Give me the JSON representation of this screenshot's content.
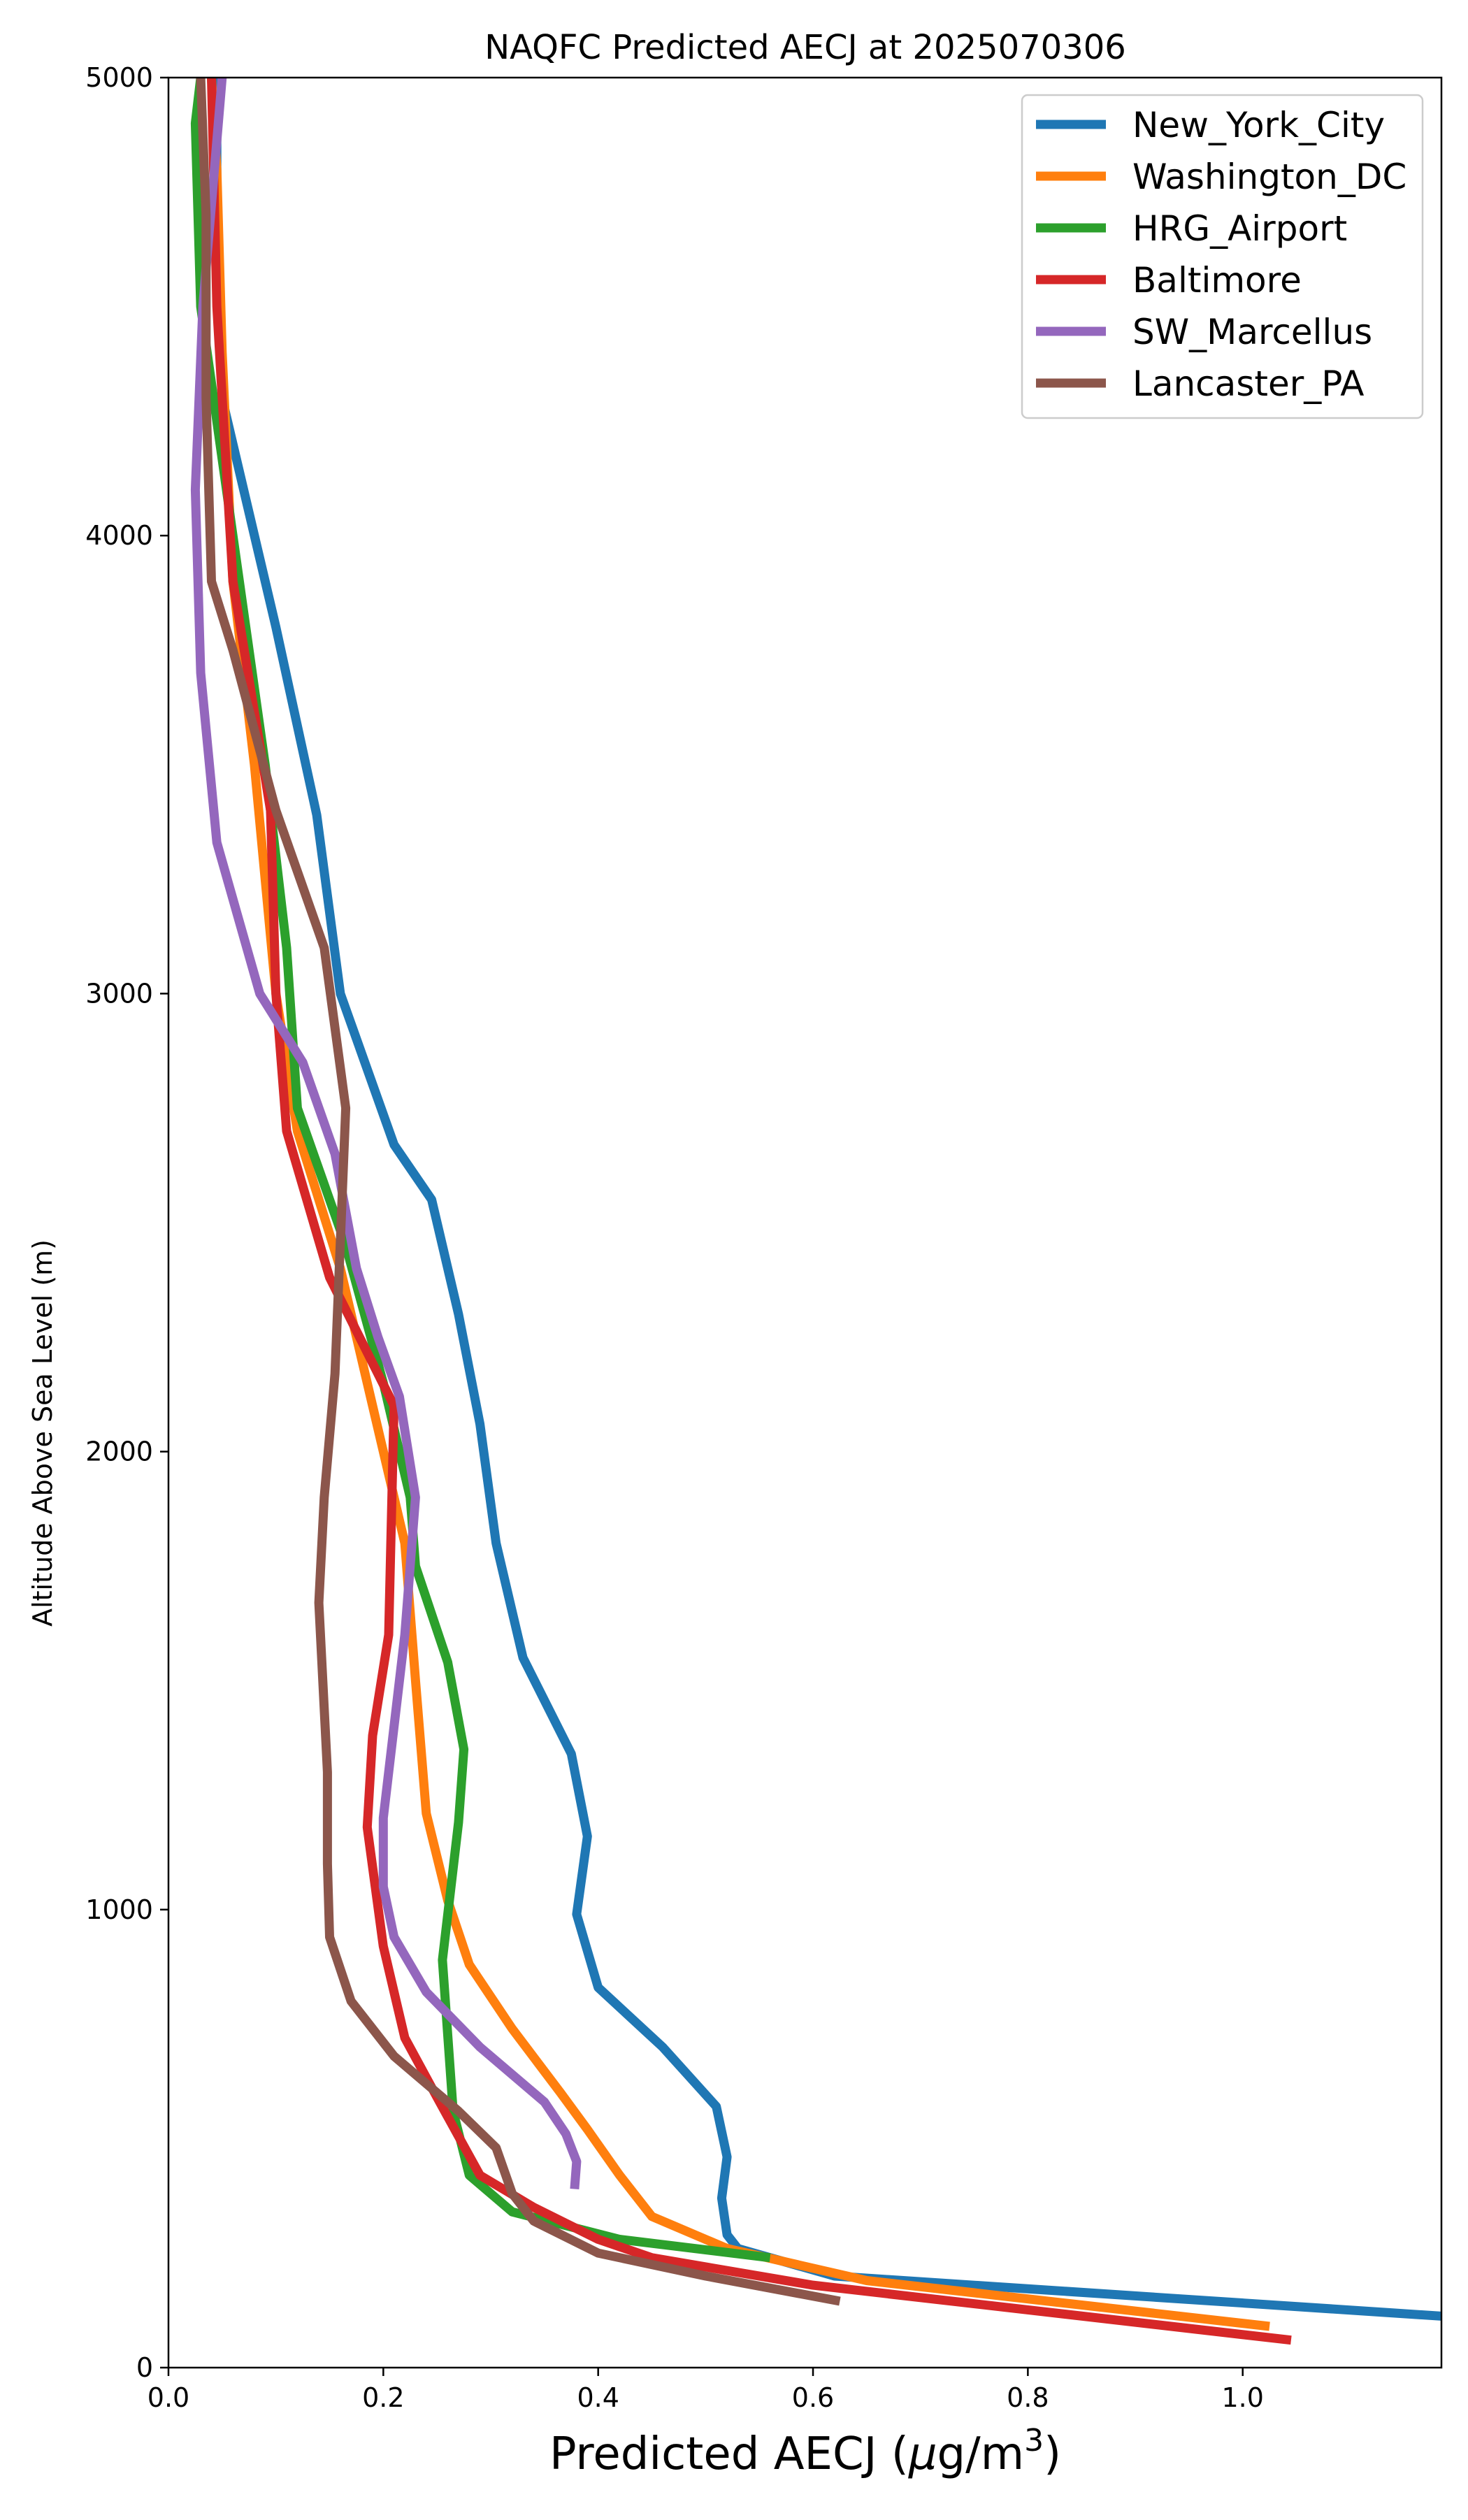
{
  "chart_data": {
    "type": "line",
    "title": "NAQFC Predicted AECJ at 2025070306",
    "xlabel_main": "Predicted AECJ (",
    "xlabel_mu": "μ",
    "xlabel_unit": "g/m",
    "xlabel_sup": "3",
    "xlabel_close": ")",
    "ylabel": "Altitude Above Sea Level (m)",
    "xlim": [
      0,
      1.185
    ],
    "ylim": [
      0,
      5000
    ],
    "xticks": [
      "0.0",
      "0.2",
      "0.4",
      "0.6",
      "0.8",
      "1.0"
    ],
    "xtick_values": [
      0,
      0.2,
      0.4,
      0.6,
      0.8,
      1.0
    ],
    "yticks": [
      "0",
      "1000",
      "2000",
      "3000",
      "4000",
      "5000"
    ],
    "ytick_values": [
      0,
      1000,
      2000,
      3000,
      4000,
      5000
    ],
    "grid": false,
    "legend_position": "top-right",
    "series": [
      {
        "name": "New_York_City",
        "color": "#1f77b4",
        "points": [
          [
            1.2,
            110
          ],
          [
            0.62,
            200
          ],
          [
            0.53,
            260
          ],
          [
            0.52,
            290
          ],
          [
            0.515,
            370
          ],
          [
            0.52,
            460
          ],
          [
            0.51,
            570
          ],
          [
            0.46,
            700
          ],
          [
            0.4,
            830
          ],
          [
            0.38,
            990
          ],
          [
            0.39,
            1160
          ],
          [
            0.375,
            1340
          ],
          [
            0.33,
            1550
          ],
          [
            0.305,
            1800
          ],
          [
            0.29,
            2060
          ],
          [
            0.27,
            2300
          ],
          [
            0.245,
            2550
          ],
          [
            0.21,
            2670
          ],
          [
            0.16,
            3000
          ],
          [
            0.138,
            3390
          ],
          [
            0.1,
            3800
          ],
          [
            0.05,
            4300
          ],
          [
            0.045,
            4700
          ],
          [
            0.045,
            5000
          ]
        ]
      },
      {
        "name": "Washington_DC",
        "color": "#ff7f0e",
        "points": [
          [
            1.025,
            90
          ],
          [
            0.65,
            190
          ],
          [
            0.52,
            260
          ],
          [
            0.45,
            330
          ],
          [
            0.42,
            420
          ],
          [
            0.39,
            520
          ],
          [
            0.365,
            600
          ],
          [
            0.32,
            740
          ],
          [
            0.28,
            880
          ],
          [
            0.26,
            1020
          ],
          [
            0.24,
            1210
          ],
          [
            0.23,
            1500
          ],
          [
            0.22,
            1800
          ],
          [
            0.19,
            2100
          ],
          [
            0.16,
            2400
          ],
          [
            0.12,
            2700
          ],
          [
            0.1,
            3000
          ],
          [
            0.08,
            3500
          ],
          [
            0.06,
            3900
          ],
          [
            0.05,
            4400
          ],
          [
            0.045,
            4800
          ],
          [
            0.04,
            5000
          ]
        ]
      },
      {
        "name": "HRG_Airport",
        "color": "#2ca02c",
        "points": [
          [
            0.56,
            240
          ],
          [
            0.42,
            280
          ],
          [
            0.32,
            340
          ],
          [
            0.28,
            420
          ],
          [
            0.265,
            560
          ],
          [
            0.255,
            890
          ],
          [
            0.27,
            1190
          ],
          [
            0.275,
            1350
          ],
          [
            0.26,
            1540
          ],
          [
            0.23,
            1750
          ],
          [
            0.225,
            1900
          ],
          [
            0.2,
            2150
          ],
          [
            0.165,
            2450
          ],
          [
            0.12,
            2750
          ],
          [
            0.11,
            3100
          ],
          [
            0.09,
            3500
          ],
          [
            0.06,
            4000
          ],
          [
            0.03,
            4500
          ],
          [
            0.025,
            4900
          ],
          [
            0.03,
            5000
          ]
        ]
      },
      {
        "name": "Baltimore",
        "color": "#d62728",
        "points": [
          [
            1.045,
            60
          ],
          [
            0.6,
            180
          ],
          [
            0.45,
            240
          ],
          [
            0.4,
            280
          ],
          [
            0.34,
            350
          ],
          [
            0.29,
            420
          ],
          [
            0.25,
            590
          ],
          [
            0.22,
            720
          ],
          [
            0.2,
            920
          ],
          [
            0.185,
            1180
          ],
          [
            0.19,
            1380
          ],
          [
            0.205,
            1600
          ],
          [
            0.21,
            2100
          ],
          [
            0.15,
            2380
          ],
          [
            0.11,
            2700
          ],
          [
            0.1,
            3000
          ],
          [
            0.095,
            3400
          ],
          [
            0.06,
            3900
          ],
          [
            0.045,
            4500
          ],
          [
            0.04,
            5000
          ]
        ]
      },
      {
        "name": "SW_Marcellus",
        "color": "#9467bd",
        "points": [
          [
            0.378,
            390
          ],
          [
            0.38,
            450
          ],
          [
            0.37,
            510
          ],
          [
            0.35,
            580
          ],
          [
            0.29,
            700
          ],
          [
            0.24,
            820
          ],
          [
            0.21,
            940
          ],
          [
            0.2,
            1050
          ],
          [
            0.2,
            1200
          ],
          [
            0.21,
            1400
          ],
          [
            0.22,
            1600
          ],
          [
            0.23,
            1900
          ],
          [
            0.215,
            2120
          ],
          [
            0.195,
            2250
          ],
          [
            0.175,
            2400
          ],
          [
            0.155,
            2650
          ],
          [
            0.125,
            2850
          ],
          [
            0.085,
            3000
          ],
          [
            0.045,
            3330
          ],
          [
            0.03,
            3700
          ],
          [
            0.025,
            4100
          ],
          [
            0.032,
            4500
          ],
          [
            0.05,
            5000
          ]
        ]
      },
      {
        "name": "Lancaster_PA",
        "color": "#8c564b",
        "points": [
          [
            0.625,
            145
          ],
          [
            0.5,
            200
          ],
          [
            0.4,
            250
          ],
          [
            0.34,
            320
          ],
          [
            0.32,
            380
          ],
          [
            0.305,
            480
          ],
          [
            0.27,
            560
          ],
          [
            0.21,
            680
          ],
          [
            0.17,
            800
          ],
          [
            0.15,
            940
          ],
          [
            0.148,
            1100
          ],
          [
            0.148,
            1300
          ],
          [
            0.14,
            1670
          ],
          [
            0.145,
            1900
          ],
          [
            0.155,
            2170
          ],
          [
            0.165,
            2750
          ],
          [
            0.145,
            3100
          ],
          [
            0.1,
            3400
          ],
          [
            0.06,
            3750
          ],
          [
            0.04,
            3900
          ],
          [
            0.035,
            4300
          ],
          [
            0.035,
            4700
          ],
          [
            0.03,
            5000
          ]
        ]
      }
    ]
  }
}
